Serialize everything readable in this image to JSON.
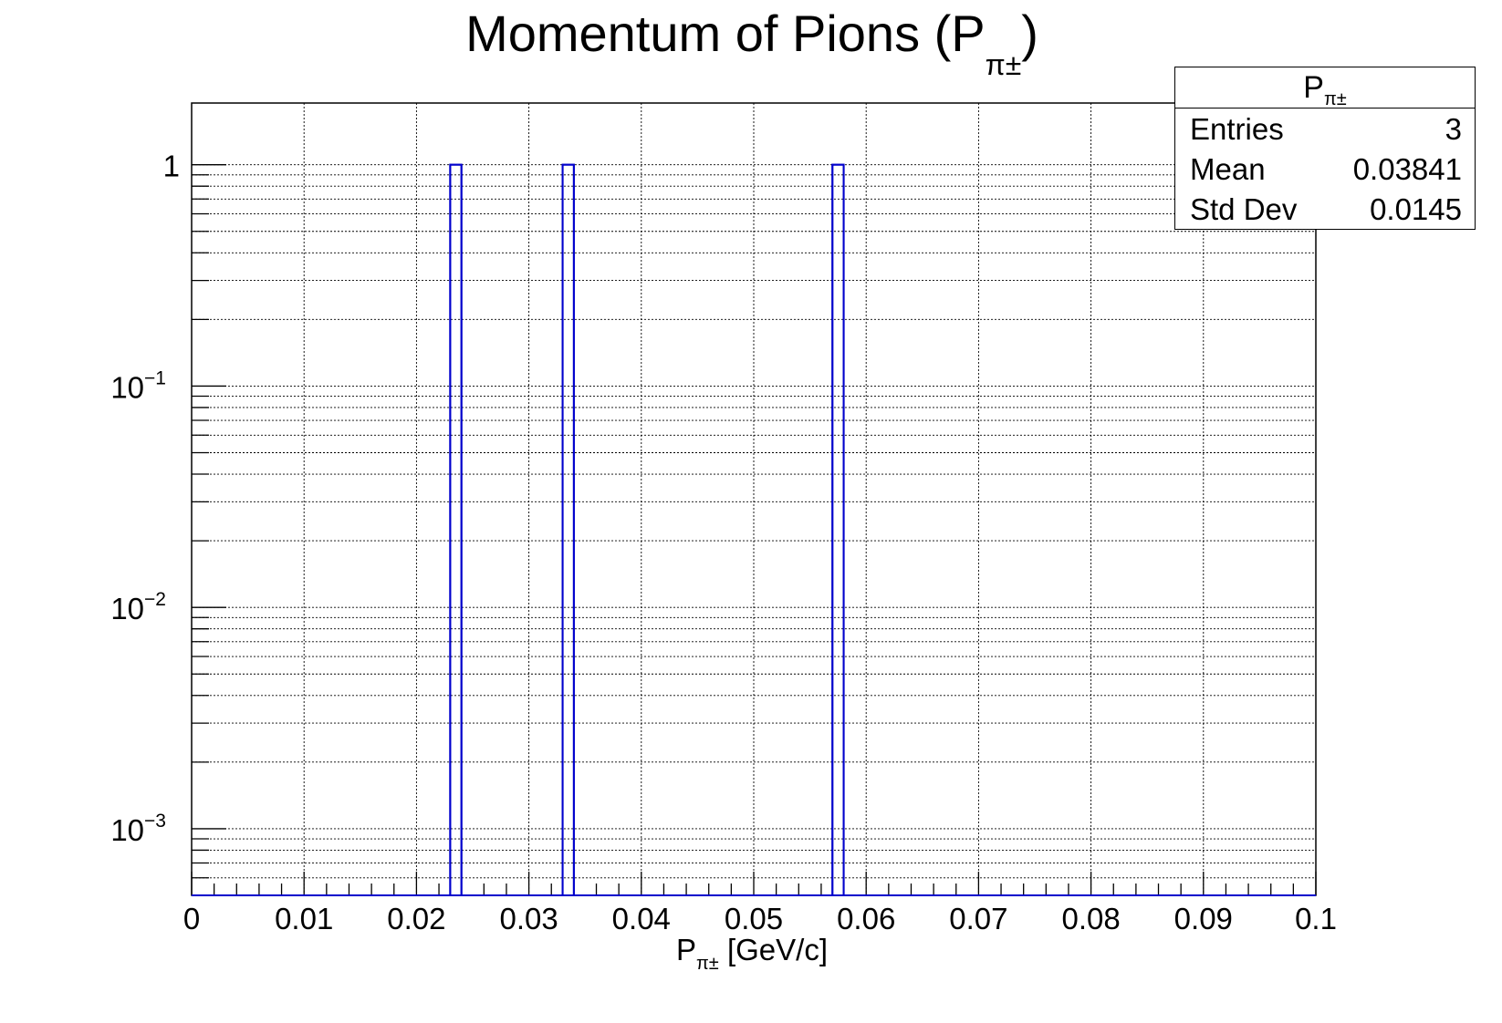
{
  "chart_data": {
    "type": "bar",
    "title": "Momentum of Pions (P",
    "title_sub": "π±",
    "title_close": ")",
    "xlabel": "P",
    "xlabel_sub": "π±",
    "xlabel_unit": " [GeV/c]",
    "xlim": [
      0,
      0.1
    ],
    "ylim": [
      0.0005,
      1.9
    ],
    "yscale": "log",
    "grid": true,
    "x_ticks": [
      "0",
      "0.01",
      "0.02",
      "0.03",
      "0.04",
      "0.05",
      "0.06",
      "0.07",
      "0.08",
      "0.09",
      "0.1"
    ],
    "y_ticks": [
      {
        "value": 1,
        "label": "1",
        "exp": ""
      },
      {
        "value": 0.1,
        "label": "10",
        "exp": "−1"
      },
      {
        "value": 0.01,
        "label": "10",
        "exp": "−2"
      },
      {
        "value": 0.001,
        "label": "10",
        "exp": "−3"
      }
    ],
    "bin_width": 0.001,
    "bins": [
      {
        "x": 0.023,
        "value": 1
      },
      {
        "x": 0.033,
        "value": 1
      },
      {
        "x": 0.057,
        "value": 1
      }
    ],
    "line_color": "#0000cc"
  },
  "stats": {
    "title": "P",
    "title_sub": "π±",
    "rows": [
      {
        "key": "Entries",
        "value": "3"
      },
      {
        "key": "Mean",
        "value": "0.03841"
      },
      {
        "key": "Std Dev",
        "value": "0.0145"
      }
    ]
  }
}
